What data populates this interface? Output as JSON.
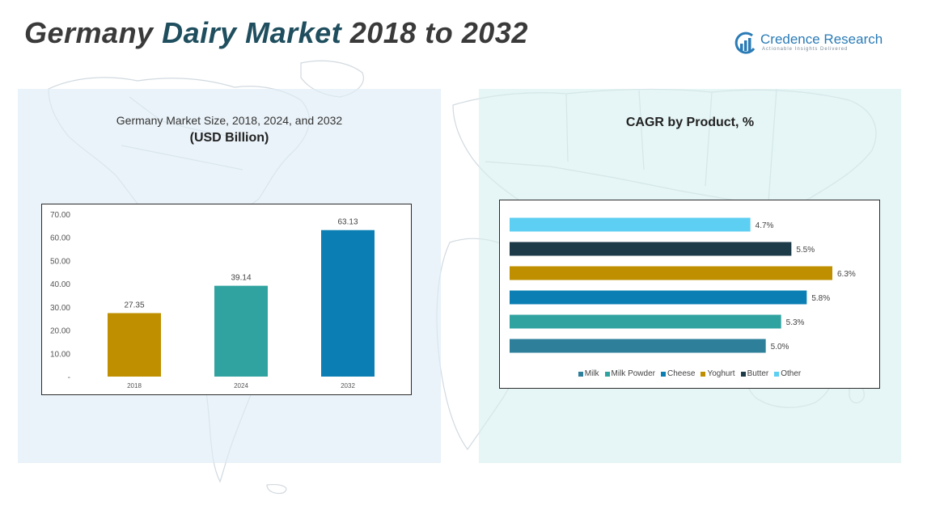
{
  "header": {
    "title_part1": "Germany ",
    "title_accent": "Dairy Market",
    "title_part2": " 2018 to 2032"
  },
  "logo": {
    "name": "Credence Research",
    "tagline": "Actionable Insights Delivered"
  },
  "left_panel": {
    "title": "Germany Market Size, 2018, 2024, and 2032",
    "subtitle": "(USD Billion)"
  },
  "right_panel": {
    "title": "CAGR by Product, %"
  },
  "colors": {
    "title_accent": "#1f4e5e",
    "logo": "#2a7bb6"
  },
  "chart_data": [
    {
      "type": "bar",
      "title": "Germany Market Size, 2018, 2024, and 2032",
      "subtitle": "(USD Billion)",
      "categories": [
        "2018",
        "2024",
        "2032"
      ],
      "values": [
        27.35,
        39.14,
        63.13
      ],
      "value_labels": [
        "27.35",
        "39.14",
        "63.13"
      ],
      "colors": [
        "#bf8f00",
        "#30a3a0",
        "#0b7fb3"
      ],
      "ylim": [
        0,
        70
      ],
      "yticks": [
        0,
        10,
        20,
        30,
        40,
        50,
        60,
        70
      ],
      "ytick_labels": [
        "-",
        "10.00",
        "20.00",
        "30.00",
        "40.00",
        "50.00",
        "60.00",
        "70.00"
      ],
      "grid": false
    },
    {
      "type": "bar",
      "orientation": "horizontal",
      "title": "CAGR by Product, %",
      "categories": [
        "Other",
        "Butter",
        "Yoghurt",
        "Cheese",
        "Milk Powder",
        "Milk"
      ],
      "values": [
        4.7,
        5.5,
        6.3,
        5.8,
        5.3,
        5.0
      ],
      "value_labels": [
        "4.7%",
        "5.5%",
        "6.3%",
        "5.8%",
        "5.3%",
        "5.0%"
      ],
      "colors": [
        "#5dcff2",
        "#1d3a48",
        "#bf8f00",
        "#0b7fb3",
        "#30a3a0",
        "#2e7f9a"
      ],
      "legend": {
        "position": "bottom",
        "items": [
          {
            "label": "Milk",
            "color": "#2e7f9a"
          },
          {
            "label": "Milk Powder",
            "color": "#30a3a0"
          },
          {
            "label": "Cheese",
            "color": "#0b7fb3"
          },
          {
            "label": "Yoghurt",
            "color": "#bf8f00"
          },
          {
            "label": "Butter",
            "color": "#1d3a48"
          },
          {
            "label": "Other",
            "color": "#5dcff2"
          }
        ]
      },
      "grid": false
    }
  ]
}
